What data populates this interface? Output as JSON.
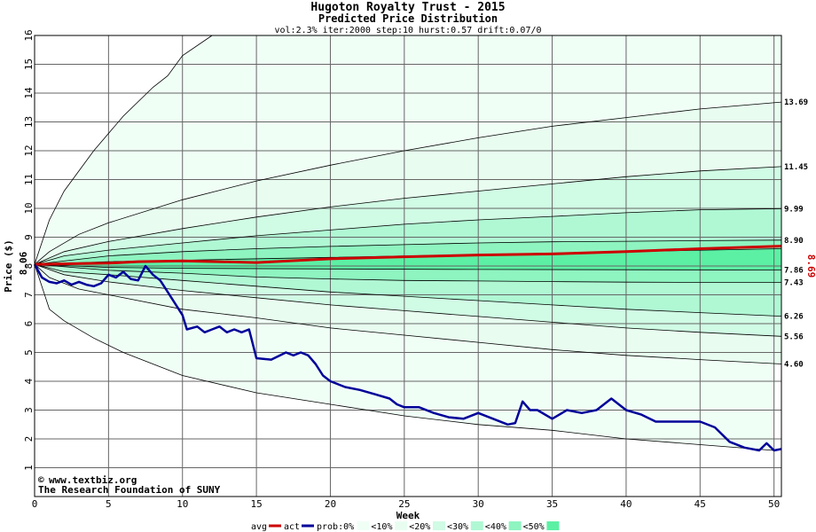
{
  "chart_data": {
    "type": "line",
    "title": "Hugoton Royalty Trust - 2015",
    "subtitle": "Predicted Price Distribution",
    "params": "vol:2.3% iter:2000 step:10 hurst:0.57 drift:0.07/0",
    "xlabel": "Week",
    "ylabel": "Price ($)",
    "xlim": [
      0,
      50.5
    ],
    "ylim": [
      0,
      16
    ],
    "x_ticks": [
      0,
      5,
      10,
      15,
      20,
      25,
      30,
      35,
      40,
      45,
      50
    ],
    "y_ticks": [
      1,
      2,
      3,
      4,
      5,
      6,
      7,
      8,
      9,
      10,
      11,
      12,
      13,
      14,
      15,
      16
    ],
    "grid": true,
    "start_price_label": "8.06",
    "current_price_label": "8.69",
    "colors": {
      "avg": "#cc0000",
      "act": "#000099",
      "band_10": "#e8fdf0",
      "band_20": "#d0fbe4",
      "band_30": "#b0f8d4",
      "band_40": "#8ef4c0",
      "band_50": "#5cf0a4",
      "grid": "#666666"
    },
    "percentile_bands": [
      {
        "label": "0%",
        "upper": [
          [
            0,
            8.06
          ],
          [
            1,
            9.6
          ],
          [
            2,
            10.6
          ],
          [
            4,
            12.0
          ],
          [
            6,
            13.2
          ],
          [
            8,
            14.2
          ],
          [
            9,
            14.6
          ],
          [
            10,
            15.3
          ],
          [
            12,
            16.0
          ]
        ],
        "lower": [
          [
            0,
            8.06
          ],
          [
            1,
            6.5
          ],
          [
            2,
            6.1
          ],
          [
            4,
            5.5
          ],
          [
            6,
            5.0
          ],
          [
            10,
            4.2
          ],
          [
            15,
            3.6
          ],
          [
            20,
            3.2
          ],
          [
            25,
            2.8
          ],
          [
            30,
            2.5
          ],
          [
            35,
            2.3
          ],
          [
            40,
            2.0
          ],
          [
            45,
            1.8
          ],
          [
            50,
            1.6
          ]
        ]
      },
      {
        "label": "10%",
        "upper": [
          [
            0,
            8.06
          ],
          [
            1,
            8.5
          ],
          [
            3,
            9.1
          ],
          [
            5,
            9.5
          ],
          [
            10,
            10.3
          ],
          [
            15,
            10.95
          ],
          [
            20,
            11.5
          ],
          [
            25,
            12.0
          ],
          [
            30,
            12.45
          ],
          [
            35,
            12.85
          ],
          [
            40,
            13.15
          ],
          [
            45,
            13.45
          ],
          [
            50.5,
            13.69
          ]
        ],
        "lower": [
          [
            0,
            8.06
          ],
          [
            1,
            7.6
          ],
          [
            3,
            7.2
          ],
          [
            5,
            7.0
          ],
          [
            10,
            6.5
          ],
          [
            15,
            6.2
          ],
          [
            20,
            5.85
          ],
          [
            25,
            5.6
          ],
          [
            30,
            5.35
          ],
          [
            35,
            5.1
          ],
          [
            40,
            4.9
          ],
          [
            45,
            4.75
          ],
          [
            50.5,
            4.6
          ]
        ]
      },
      {
        "label": "20%",
        "upper": [
          [
            0,
            8.06
          ],
          [
            2,
            8.5
          ],
          [
            5,
            8.85
          ],
          [
            10,
            9.3
          ],
          [
            15,
            9.7
          ],
          [
            20,
            10.05
          ],
          [
            25,
            10.35
          ],
          [
            30,
            10.6
          ],
          [
            35,
            10.85
          ],
          [
            40,
            11.1
          ],
          [
            45,
            11.3
          ],
          [
            50.5,
            11.45
          ]
        ],
        "lower": [
          [
            0,
            8.06
          ],
          [
            2,
            7.7
          ],
          [
            5,
            7.45
          ],
          [
            10,
            7.15
          ],
          [
            15,
            6.9
          ],
          [
            20,
            6.65
          ],
          [
            25,
            6.45
          ],
          [
            30,
            6.25
          ],
          [
            35,
            6.05
          ],
          [
            40,
            5.85
          ],
          [
            45,
            5.7
          ],
          [
            50.5,
            5.56
          ]
        ]
      },
      {
        "label": "30%",
        "upper": [
          [
            0,
            8.06
          ],
          [
            2,
            8.35
          ],
          [
            5,
            8.55
          ],
          [
            10,
            8.8
          ],
          [
            15,
            9.05
          ],
          [
            20,
            9.25
          ],
          [
            25,
            9.45
          ],
          [
            30,
            9.6
          ],
          [
            35,
            9.72
          ],
          [
            40,
            9.85
          ],
          [
            45,
            9.95
          ],
          [
            50.5,
            9.99
          ]
        ],
        "lower": [
          [
            0,
            8.06
          ],
          [
            2,
            7.8
          ],
          [
            5,
            7.7
          ],
          [
            10,
            7.5
          ],
          [
            15,
            7.3
          ],
          [
            20,
            7.1
          ],
          [
            25,
            6.95
          ],
          [
            30,
            6.8
          ],
          [
            35,
            6.65
          ],
          [
            40,
            6.5
          ],
          [
            45,
            6.38
          ],
          [
            50.5,
            6.26
          ]
        ]
      },
      {
        "label": "40%",
        "upper": [
          [
            0,
            8.06
          ],
          [
            5,
            8.35
          ],
          [
            10,
            8.5
          ],
          [
            15,
            8.6
          ],
          [
            20,
            8.68
          ],
          [
            25,
            8.74
          ],
          [
            30,
            8.8
          ],
          [
            35,
            8.84
          ],
          [
            40,
            8.86
          ],
          [
            45,
            8.88
          ],
          [
            50.5,
            8.9
          ]
        ],
        "lower": [
          [
            0,
            8.06
          ],
          [
            5,
            7.85
          ],
          [
            10,
            7.75
          ],
          [
            15,
            7.62
          ],
          [
            20,
            7.55
          ],
          [
            25,
            7.5
          ],
          [
            30,
            7.48
          ],
          [
            35,
            7.46
          ],
          [
            40,
            7.44
          ],
          [
            45,
            7.43
          ],
          [
            50.5,
            7.43
          ]
        ]
      },
      {
        "label": "50%",
        "upper": [
          [
            0,
            8.06
          ],
          [
            5,
            8.15
          ],
          [
            10,
            8.2
          ],
          [
            20,
            8.3
          ],
          [
            30,
            8.4
          ],
          [
            40,
            8.5
          ],
          [
            50.5,
            8.6
          ]
        ],
        "lower": [
          [
            0,
            8.06
          ],
          [
            5,
            7.95
          ],
          [
            10,
            7.92
          ],
          [
            20,
            7.9
          ],
          [
            30,
            7.88
          ],
          [
            40,
            7.87
          ],
          [
            50.5,
            7.86
          ]
        ]
      }
    ],
    "right_labels": [
      "13.69",
      "11.45",
      "9.99",
      "8.90",
      "7.86",
      "7.43",
      "6.26",
      "5.56",
      "4.60"
    ],
    "right_label_values": [
      13.69,
      11.45,
      9.99,
      8.9,
      7.86,
      7.43,
      6.26,
      5.56,
      4.6
    ],
    "series": [
      {
        "name": "avg",
        "values": [
          [
            0,
            8.06
          ],
          [
            5,
            8.1
          ],
          [
            7,
            8.15
          ],
          [
            10,
            8.18
          ],
          [
            15,
            8.12
          ],
          [
            20,
            8.25
          ],
          [
            25,
            8.32
          ],
          [
            30,
            8.38
          ],
          [
            35,
            8.42
          ],
          [
            40,
            8.5
          ],
          [
            45,
            8.6
          ],
          [
            50.5,
            8.69
          ]
        ]
      },
      {
        "name": "act",
        "values": [
          [
            0,
            8.06
          ],
          [
            0.5,
            7.6
          ],
          [
            1,
            7.45
          ],
          [
            1.5,
            7.4
          ],
          [
            2,
            7.5
          ],
          [
            2.5,
            7.35
          ],
          [
            3,
            7.45
          ],
          [
            3.5,
            7.35
          ],
          [
            4,
            7.3
          ],
          [
            4.5,
            7.4
          ],
          [
            5,
            7.7
          ],
          [
            5.5,
            7.6
          ],
          [
            6,
            7.8
          ],
          [
            6.5,
            7.55
          ],
          [
            7,
            7.5
          ],
          [
            7.5,
            8.0
          ],
          [
            8,
            7.7
          ],
          [
            8.5,
            7.5
          ],
          [
            9,
            7.1
          ],
          [
            9.5,
            6.7
          ],
          [
            10,
            6.3
          ],
          [
            10.3,
            5.8
          ],
          [
            11,
            5.9
          ],
          [
            11.5,
            5.7
          ],
          [
            12,
            5.8
          ],
          [
            12.5,
            5.9
          ],
          [
            13,
            5.7
          ],
          [
            13.5,
            5.8
          ],
          [
            14,
            5.7
          ],
          [
            14.5,
            5.8
          ],
          [
            15,
            4.8
          ],
          [
            16,
            4.75
          ],
          [
            17,
            5.0
          ],
          [
            17.5,
            4.9
          ],
          [
            18,
            5.0
          ],
          [
            18.5,
            4.9
          ],
          [
            19,
            4.6
          ],
          [
            19.5,
            4.2
          ],
          [
            20,
            4.0
          ],
          [
            21,
            3.8
          ],
          [
            22,
            3.7
          ],
          [
            23,
            3.55
          ],
          [
            24,
            3.4
          ],
          [
            24.5,
            3.2
          ],
          [
            25,
            3.1
          ],
          [
            26,
            3.1
          ],
          [
            27,
            2.9
          ],
          [
            28,
            2.75
          ],
          [
            29,
            2.7
          ],
          [
            30,
            2.9
          ],
          [
            31,
            2.7
          ],
          [
            32,
            2.5
          ],
          [
            32.5,
            2.55
          ],
          [
            33,
            3.3
          ],
          [
            33.5,
            3.0
          ],
          [
            34,
            3.0
          ],
          [
            35,
            2.7
          ],
          [
            36,
            3.0
          ],
          [
            37,
            2.9
          ],
          [
            38,
            3.0
          ],
          [
            39,
            3.4
          ],
          [
            40,
            3.0
          ],
          [
            41,
            2.85
          ],
          [
            42,
            2.6
          ],
          [
            43,
            2.6
          ],
          [
            44,
            2.6
          ],
          [
            45,
            2.6
          ],
          [
            46,
            2.4
          ],
          [
            47,
            1.9
          ],
          [
            48,
            1.7
          ],
          [
            49,
            1.6
          ],
          [
            49.5,
            1.85
          ],
          [
            50,
            1.6
          ],
          [
            50.5,
            1.65
          ]
        ]
      }
    ],
    "legend": {
      "items": [
        "avg",
        "act",
        "prob:0%",
        "<10%",
        "<20%",
        "<30%",
        "<40%",
        "<50%"
      ],
      "placement": "bottom"
    },
    "credits": {
      "line1": "www.textbiz.org",
      "line2": "The Research Foundation of SUNY"
    }
  }
}
